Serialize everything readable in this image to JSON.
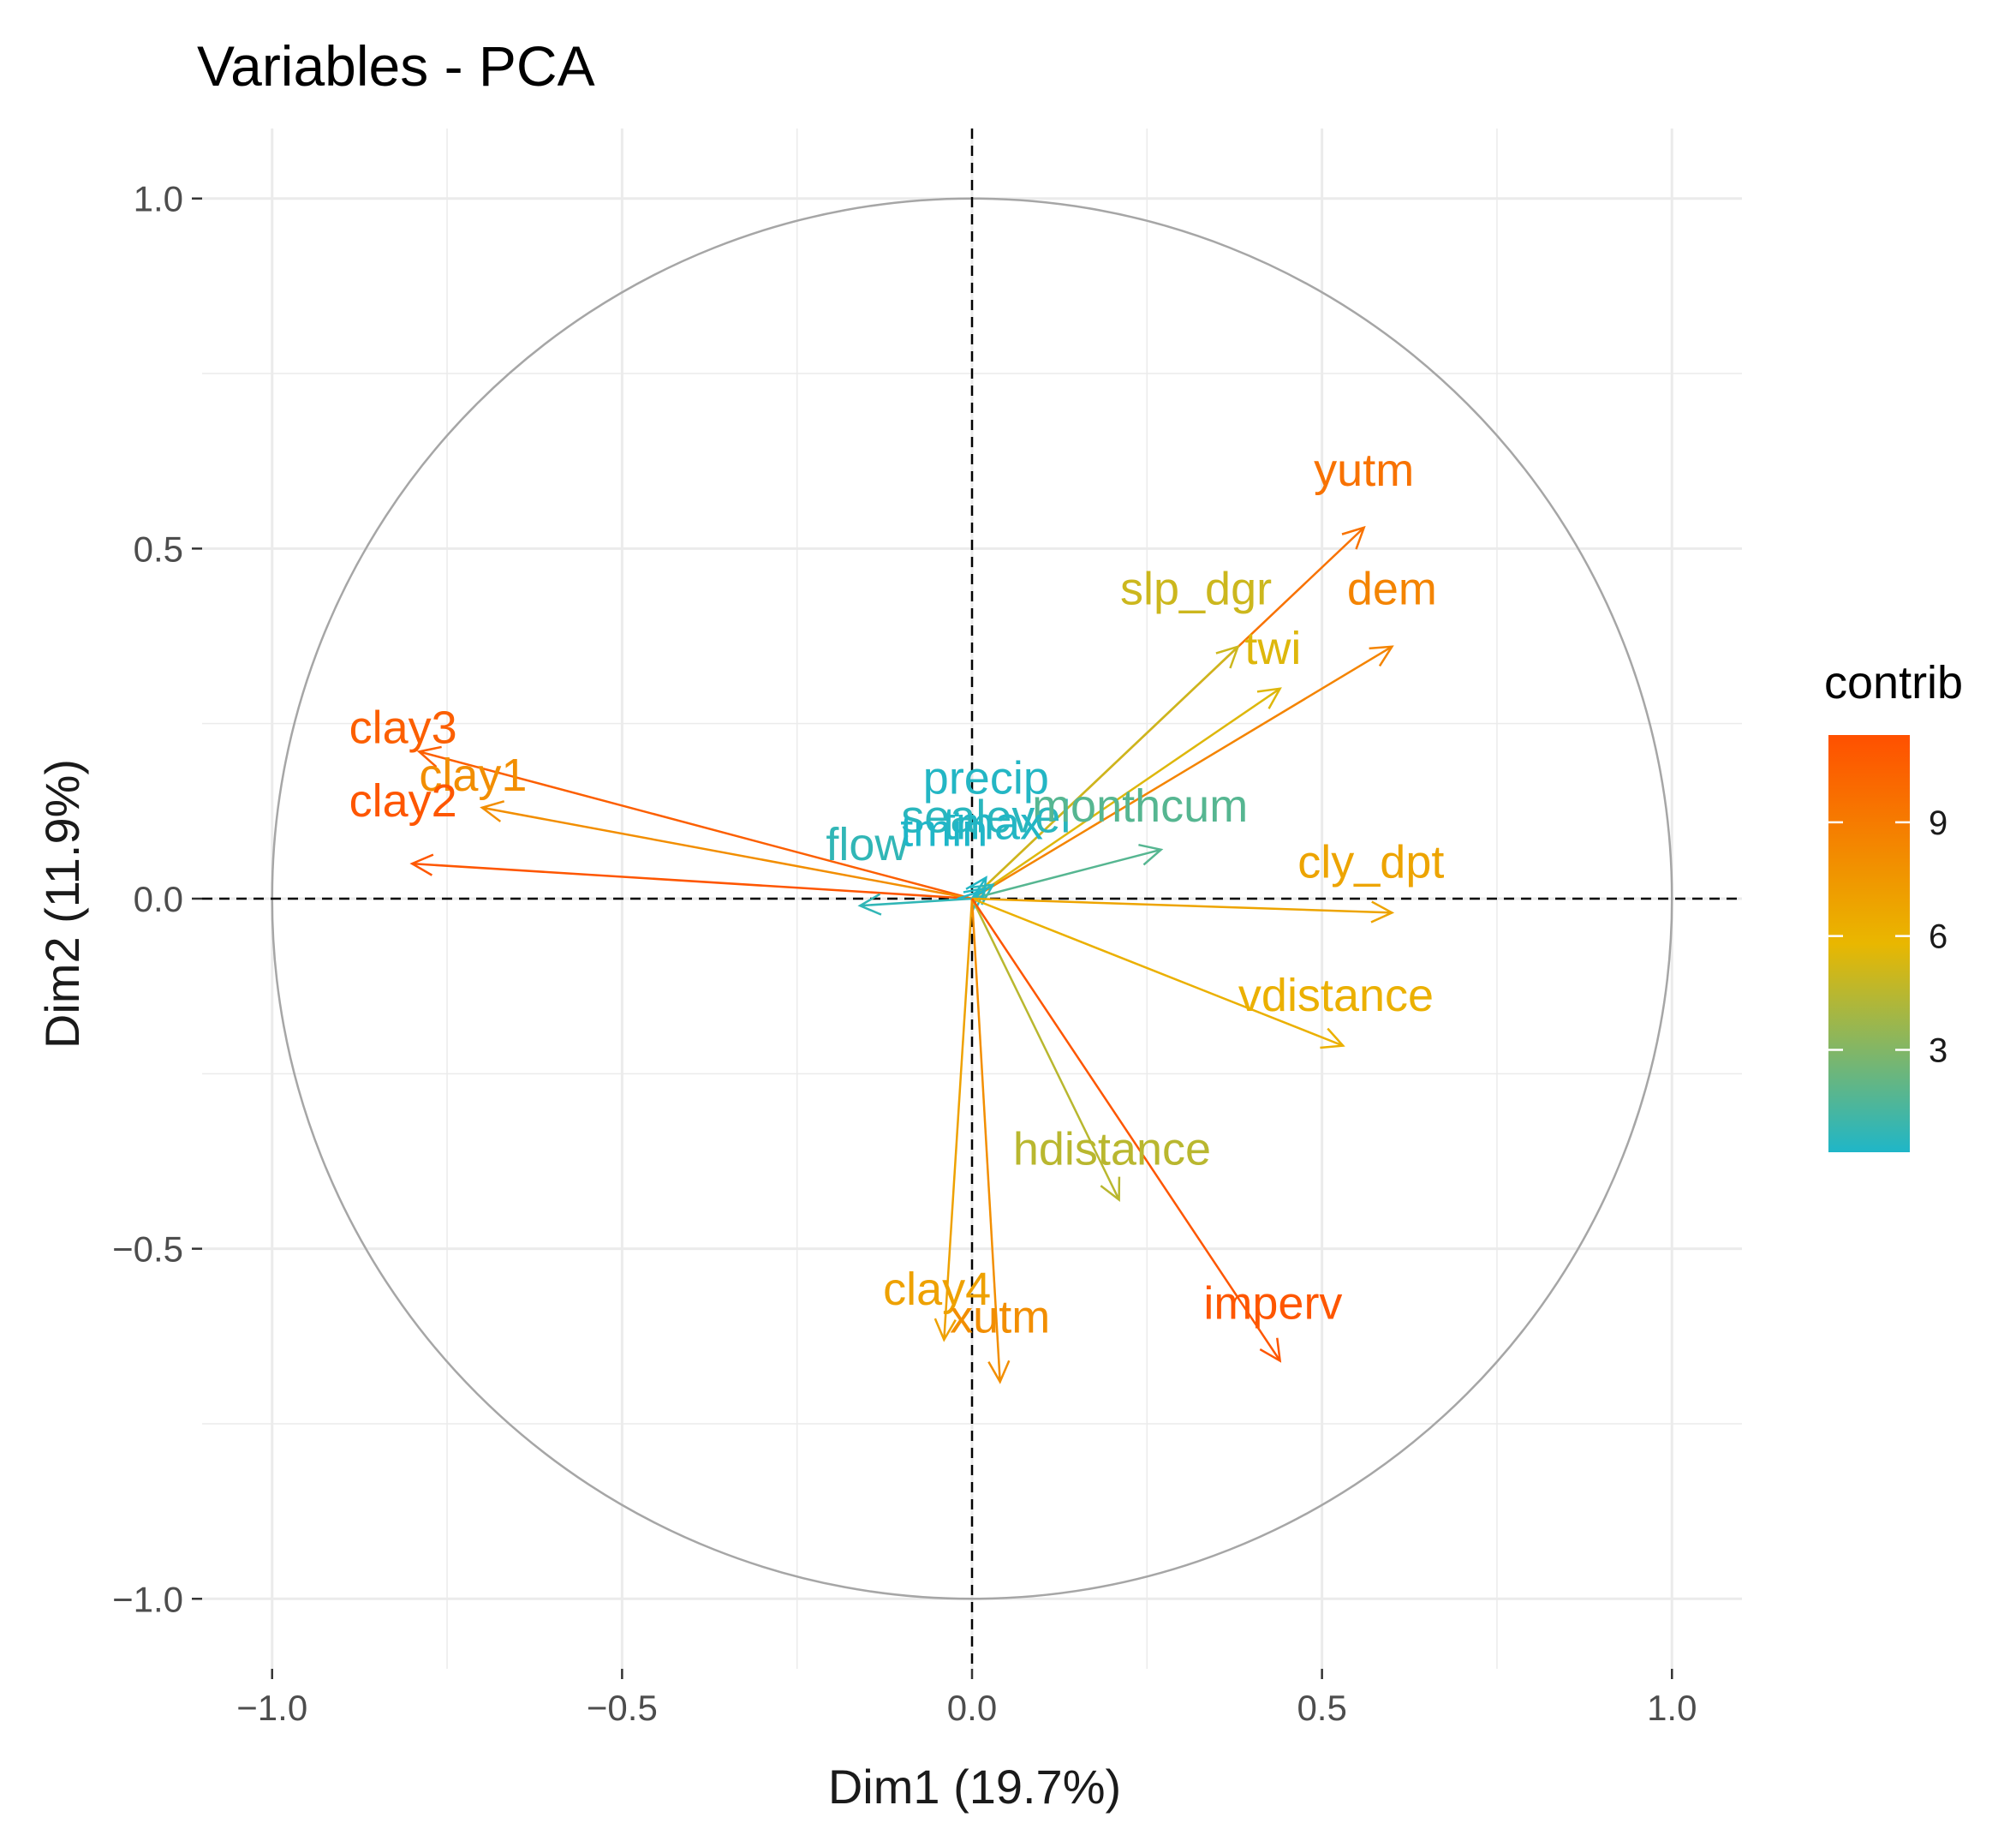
{
  "chart_data": {
    "type": "scatter",
    "subtype": "pca-variable-correlation-circle",
    "title": "Variables - PCA",
    "xlabel": "Dim1 (19.7%)",
    "ylabel": "Dim2 (11.9%)",
    "xlim": [
      -1.1,
      1.1
    ],
    "ylim": [
      -1.1,
      1.1
    ],
    "x_ticks": [
      -1.0,
      -0.5,
      0.0,
      0.5,
      1.0
    ],
    "y_ticks": [
      -1.0,
      -0.5,
      0.0,
      0.5,
      1.0
    ],
    "x_tick_labels": [
      "−1.0",
      "−0.5",
      "0.0",
      "0.5",
      "1.0"
    ],
    "y_tick_labels": [
      "1.0",
      "0.5",
      "0.0",
      "−0.5",
      "−1.0"
    ],
    "grid": true,
    "unit_circle": true,
    "reference_lines": "dashed at x=0 and y=0",
    "legend": {
      "title": "contrib",
      "placement": "right",
      "ticks": [
        "9",
        "6",
        "3"
      ],
      "tick_values": [
        9,
        6,
        3
      ],
      "range": [
        0.3,
        11.3
      ],
      "colors": [
        "#1fb6c8",
        "#e9b700",
        "#ff5000"
      ]
    },
    "variables": [
      {
        "name": "yutm",
        "x": 0.56,
        "y": 0.53,
        "contrib": 9.5
      },
      {
        "name": "dem",
        "x": 0.6,
        "y": 0.36,
        "contrib": 8.5
      },
      {
        "name": "slp_dgr",
        "x": 0.38,
        "y": 0.36,
        "contrib": 5.0
      },
      {
        "name": "twi",
        "x": 0.44,
        "y": 0.3,
        "contrib": 5.5
      },
      {
        "name": "clay3",
        "x": -0.79,
        "y": 0.21,
        "contrib": 10.5
      },
      {
        "name": "clay1",
        "x": -0.7,
        "y": 0.13,
        "contrib": 8.0
      },
      {
        "name": "clay2",
        "x": -0.8,
        "y": 0.05,
        "contrib": 11.0
      },
      {
        "name": "precip",
        "x": 0.02,
        "y": 0.03,
        "contrib": 0.4
      },
      {
        "name": "sealevel",
        "x": 0.03,
        "y": 0.02,
        "contrib": 0.6
      },
      {
        "name": "monthcum",
        "x": 0.27,
        "y": 0.07,
        "contrib": 1.8
      },
      {
        "name": "flow",
        "x": -0.16,
        "y": -0.01,
        "contrib": 0.8
      },
      {
        "name": "tmin",
        "x": 0.01,
        "y": 0.01,
        "contrib": 0.3
      },
      {
        "name": "tmax",
        "x": 0.02,
        "y": 0.015,
        "contrib": 0.4
      },
      {
        "name": "cly_dpt",
        "x": 0.6,
        "y": -0.02,
        "contrib": 6.8
      },
      {
        "name": "vdistance",
        "x": 0.53,
        "y": -0.21,
        "contrib": 6.2
      },
      {
        "name": "hdistance",
        "x": 0.21,
        "y": -0.43,
        "contrib": 4.5
      },
      {
        "name": "clay4",
        "x": -0.04,
        "y": -0.63,
        "contrib": 7.0
      },
      {
        "name": "xutm",
        "x": 0.04,
        "y": -0.69,
        "contrib": 8.0
      },
      {
        "name": "imperv",
        "x": 0.44,
        "y": -0.66,
        "contrib": 11.0
      }
    ]
  }
}
